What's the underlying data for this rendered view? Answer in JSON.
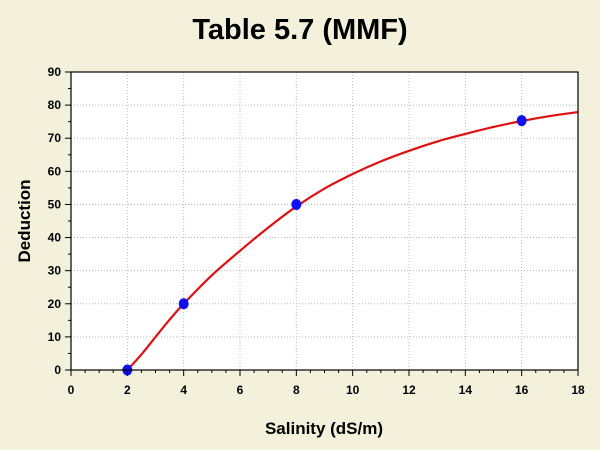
{
  "chart_data": {
    "type": "scatter",
    "title": "Table 5.7 (MMF)",
    "xlabel": "Salinity (dS/m)",
    "ylabel": "Deduction",
    "xlim": [
      0,
      18
    ],
    "ylim": [
      0,
      90
    ],
    "x_ticks": [
      0,
      2,
      4,
      6,
      8,
      10,
      12,
      14,
      16,
      18
    ],
    "y_ticks": [
      0,
      10,
      20,
      30,
      40,
      50,
      60,
      70,
      80,
      90
    ],
    "grid": true,
    "series": [
      {
        "kind": "points",
        "color": "#1010ee",
        "x": [
          2,
          4,
          8,
          16
        ],
        "y": [
          0,
          20,
          50,
          75.3
        ]
      },
      {
        "kind": "fitted-curve",
        "color": "#e01010",
        "x": [
          2,
          2.5,
          3,
          3.5,
          4,
          5,
          6,
          7,
          8,
          9,
          10,
          11,
          12,
          13,
          14,
          15,
          16,
          17,
          18
        ],
        "y": [
          0,
          4.7,
          10.0,
          15.2,
          20.0,
          28.6,
          36.0,
          43.0,
          49.4,
          54.8,
          59.2,
          63.0,
          66.2,
          69.0,
          71.3,
          73.4,
          75.2,
          76.7,
          77.9
        ]
      }
    ]
  }
}
